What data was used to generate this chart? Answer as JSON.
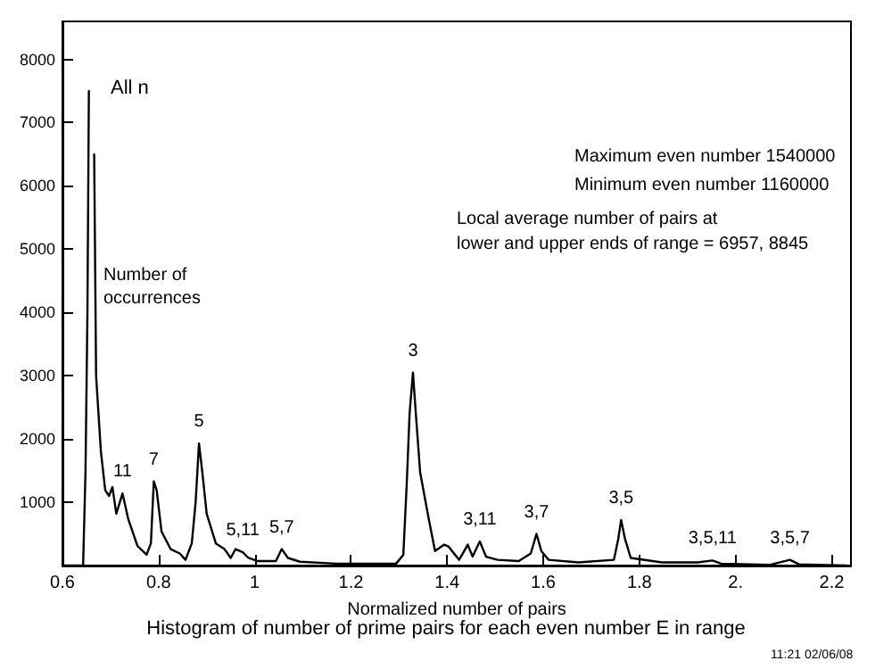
{
  "chart_data": {
    "type": "line",
    "title": "Histogram of number of prime pairs for each even number E in range",
    "xlabel": "Normalized number of pairs",
    "ylabel": "Number of occurrences",
    "x": [
      0.6,
      0.643,
      0.648,
      0.652,
      0.655,
      0.659,
      0.662,
      0.666,
      0.67,
      0.68,
      0.689,
      0.697,
      0.704,
      0.712,
      0.725,
      0.737,
      0.756,
      0.775,
      0.784,
      0.79,
      0.796,
      0.806,
      0.825,
      0.844,
      0.856,
      0.869,
      0.877,
      0.884,
      0.891,
      0.9,
      0.919,
      0.937,
      0.95,
      0.96,
      0.975,
      0.987,
      1.006,
      1.044,
      1.056,
      1.069,
      1.094,
      1.169,
      1.294,
      1.309,
      1.316,
      1.322,
      1.329,
      1.335,
      1.344,
      1.362,
      1.375,
      1.394,
      1.403,
      1.425,
      1.443,
      1.453,
      1.468,
      1.481,
      1.505,
      1.549,
      1.574,
      1.586,
      1.596,
      1.611,
      1.673,
      1.747,
      1.756,
      1.762,
      1.77,
      1.782,
      1.847,
      1.921,
      1.952,
      1.97,
      2.07,
      2.113,
      2.132,
      2.23
    ],
    "series": [
      {
        "color": "#000000",
        "values": [
          0,
          0,
          1500,
          4000,
          7500,
          null,
          null,
          6500,
          3000,
          1800,
          1190,
          1100,
          1240,
          820,
          1140,
          730,
          310,
          170,
          350,
          1330,
          1190,
          540,
          260,
          190,
          90,
          350,
          1000,
          1930,
          1470,
          820,
          350,
          260,
          120,
          260,
          210,
          120,
          70,
          70,
          260,
          120,
          60,
          30,
          30,
          170,
          1280,
          2400,
          3050,
          2400,
          1470,
          730,
          230,
          330,
          300,
          90,
          330,
          140,
          380,
          140,
          90,
          70,
          190,
          500,
          230,
          90,
          50,
          90,
          420,
          720,
          420,
          120,
          50,
          50,
          80,
          30,
          10,
          90,
          20,
          0
        ]
      }
    ],
    "xlim": [
      0.6,
      2.24
    ],
    "ylim": [
      0,
      8600
    ],
    "xticks": [
      0.6,
      0.8,
      1,
      1.2,
      1.4,
      1.6,
      1.8,
      {
        "value": 2,
        "label": "2."
      },
      2.2
    ],
    "yticks": [
      1000,
      2000,
      3000,
      4000,
      5000,
      6000,
      7000,
      8000
    ],
    "annotations": [
      "All n",
      "Maximum even number 1540000",
      "Minimum even number 1160000",
      "Local average number of pairs at\nlower and upper ends of range = 6957, 8845",
      "11:21 02/06/08",
      {
        "text": "11",
        "x": 0.725,
        "y": 1140
      },
      {
        "text": "7",
        "x": 0.79,
        "y": 1330
      },
      {
        "text": "5",
        "x": 0.884,
        "y": 1930
      },
      {
        "text": "5,11",
        "x": 0.975,
        "y": 210
      },
      {
        "text": "5,7",
        "x": 1.056,
        "y": 260
      },
      {
        "text": "3",
        "x": 1.329,
        "y": 3050
      },
      {
        "text": "3,11",
        "x": 1.468,
        "y": 380
      },
      {
        "text": "3,7",
        "x": 1.586,
        "y": 500
      },
      {
        "text": "3,5",
        "x": 1.762,
        "y": 720
      },
      {
        "text": "3,5,11",
        "x": 1.952,
        "y": 80
      },
      {
        "text": "3,5,7",
        "x": 2.113,
        "y": 90
      }
    ]
  }
}
